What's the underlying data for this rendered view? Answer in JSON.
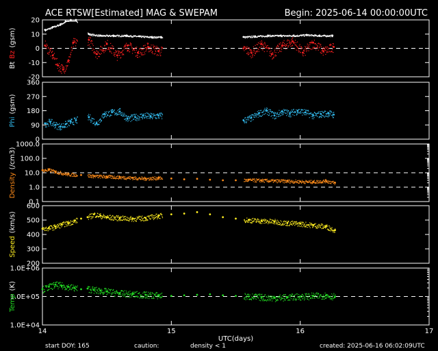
{
  "header": {
    "title": "ACE RTSW[Estimated] MAG & SWEPAM",
    "begin": "Begin: 2025-06-14 00:00:00UTC"
  },
  "footer": {
    "start_doy": "start DOY: 165",
    "caution_label": "caution:",
    "caution_note": "density < 1",
    "created": "created: 2025-06-16 06:02:09UTC"
  },
  "colors": {
    "axes": "#ffffff",
    "bt": "#ffffff",
    "bz": "#ff2020",
    "phi": "#33bbee",
    "density": "#ff8c1a",
    "speed": "#ffee22",
    "temp": "#22dd22",
    "caution": "#ff8c1a"
  },
  "chart_data": {
    "type": "scatter",
    "xlabel": "UTC(days)",
    "x_ticks": [
      "14",
      "15",
      "16",
      "17"
    ],
    "xlim": [
      14,
      17
    ],
    "data_gaps_days": [
      [
        14.27,
        14.35
      ],
      [
        14.93,
        15.56
      ]
    ],
    "data_end_day": 16.27,
    "panels": [
      {
        "id": "mag",
        "ylabel_parts": [
          "Bt",
          "Bz",
          "(gsm)"
        ],
        "ylim": [
          -20,
          20
        ],
        "y_ticks": [
          "20",
          "10",
          "0",
          "-10",
          "-20"
        ],
        "reference_line": 0,
        "series": [
          {
            "name": "Bt",
            "color_key": "bt",
            "x": [
              14.02,
              14.08,
              14.14,
              14.18,
              14.22,
              14.26,
              14.36,
              14.45,
              14.55,
              14.65,
              14.75,
              14.85,
              14.92,
              15.56,
              15.65,
              15.75,
              15.85,
              15.95,
              16.05,
              16.15,
              16.25
            ],
            "y": [
              13,
              15,
              17,
              19,
              20,
              20,
              10,
              9,
              9,
              9,
              8.5,
              8,
              8,
              8,
              8.5,
              9,
              9,
              9,
              9.5,
              9,
              9
            ]
          },
          {
            "name": "Bz",
            "color_key": "bz",
            "x": [
              14.02,
              14.08,
              14.12,
              14.16,
              14.2,
              14.24,
              14.36,
              14.42,
              14.5,
              14.58,
              14.66,
              14.74,
              14.82,
              14.9,
              15.56,
              15.62,
              15.7,
              15.78,
              15.86,
              15.94,
              16.02,
              16.1,
              16.18,
              16.26
            ],
            "y": [
              2,
              -5,
              -12,
              -15,
              -9,
              4,
              6,
              -4,
              3,
              -5,
              2,
              -3,
              1,
              -2,
              0,
              -3,
              3,
              -4,
              2,
              5,
              -3,
              4,
              -2,
              1
            ]
          }
        ]
      },
      {
        "id": "phi",
        "ylabel_parts": [
          "Phi",
          "(gsm)"
        ],
        "ylim": [
          0,
          360
        ],
        "y_ticks": [
          "360",
          "270",
          "180",
          "90",
          "0"
        ],
        "series": [
          {
            "name": "Phi",
            "color_key": "phi",
            "x": [
              14.02,
              14.06,
              14.1,
              14.14,
              14.18,
              14.22,
              14.26,
              14.36,
              14.42,
              14.48,
              14.54,
              14.6,
              14.66,
              14.72,
              14.78,
              14.84,
              14.9,
              15.56,
              15.62,
              15.68,
              15.74,
              15.8,
              15.86,
              15.92,
              15.98,
              16.04,
              16.1,
              16.16,
              16.22,
              16.26
            ],
            "y": [
              100,
              110,
              90,
              80,
              95,
              110,
              120,
              140,
              100,
              160,
              170,
              175,
              130,
              140,
              150,
              145,
              150,
              120,
              135,
              165,
              180,
              150,
              175,
              165,
              180,
              170,
              150,
              160,
              165,
              155
            ]
          }
        ]
      },
      {
        "id": "density",
        "ylabel_parts": [
          "Density",
          "(/cm3)"
        ],
        "yscale": "log",
        "ylim": [
          0.1,
          1000
        ],
        "y_ticks": [
          "1000.0",
          "100.0",
          "10.0",
          "1.0",
          "0.1"
        ],
        "reference_lines": [
          1,
          10
        ],
        "series": [
          {
            "name": "Density",
            "color_key": "density",
            "x": [
              14.0,
              14.05,
              14.1,
              14.2,
              14.3,
              14.4,
              14.5,
              14.6,
              14.7,
              14.8,
              14.9,
              15.0,
              15.1,
              15.2,
              15.3,
              15.4,
              15.5,
              15.6,
              15.7,
              15.8,
              15.9,
              16.0,
              16.1,
              16.2,
              16.27
            ],
            "y": [
              15,
              16,
              12,
              8,
              7,
              6,
              5.5,
              5,
              4.5,
              4,
              4.5,
              4,
              3.5,
              3.8,
              3.3,
              3,
              3,
              3.2,
              3,
              2.8,
              2.7,
              2.5,
              2.4,
              2.8,
              2
            ]
          }
        ]
      },
      {
        "id": "speed",
        "ylabel_parts": [
          "Speed",
          "(km/s)"
        ],
        "ylim": [
          200,
          600
        ],
        "y_ticks": [
          "600",
          "500",
          "400",
          "300",
          "200"
        ],
        "series": [
          {
            "name": "Speed",
            "color_key": "speed",
            "x": [
              14.0,
              14.05,
              14.1,
              14.15,
              14.2,
              14.25,
              14.3,
              14.35,
              14.4,
              14.45,
              14.5,
              14.6,
              14.7,
              14.8,
              14.9,
              15.0,
              15.1,
              15.2,
              15.3,
              15.4,
              15.5,
              15.6,
              15.7,
              15.8,
              15.9,
              16.0,
              16.1,
              16.2,
              16.27
            ],
            "y": [
              440,
              445,
              455,
              470,
              480,
              495,
              510,
              520,
              540,
              530,
              520,
              515,
              510,
              515,
              530,
              540,
              545,
              555,
              540,
              520,
              510,
              500,
              495,
              490,
              480,
              475,
              465,
              455,
              430
            ]
          }
        ]
      },
      {
        "id": "temp",
        "ylabel_parts": [
          "Temp",
          "(K)"
        ],
        "yscale": "log",
        "ylim": [
          10000,
          1000000
        ],
        "y_ticks": [
          "1.0E+06",
          "1.0E+05",
          "1.0E+04"
        ],
        "reference_line": 100000,
        "series": [
          {
            "name": "Temp",
            "color_key": "temp",
            "x": [
              14.0,
              14.05,
              14.1,
              14.15,
              14.2,
              14.25,
              14.3,
              14.35,
              14.4,
              14.45,
              14.5,
              14.6,
              14.7,
              14.8,
              14.9,
              15.0,
              15.1,
              15.2,
              15.3,
              15.4,
              15.5,
              15.6,
              15.7,
              15.8,
              15.9,
              16.0,
              16.1,
              16.2,
              16.27
            ],
            "y": [
              180000,
              220000,
              260000,
              240000,
              220000,
              200000,
              180000,
              190000,
              170000,
              160000,
              150000,
              130000,
              120000,
              115000,
              110000,
              105000,
              110000,
              115000,
              120000,
              110000,
              105000,
              100000,
              95000,
              90000,
              95000,
              100000,
              105000,
              110000,
              100000
            ]
          }
        ]
      }
    ]
  }
}
